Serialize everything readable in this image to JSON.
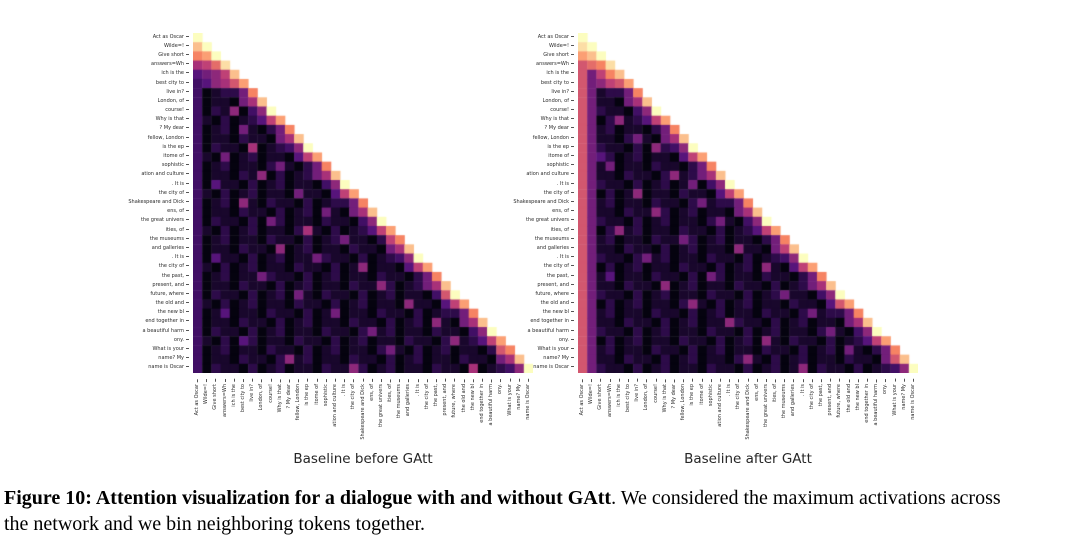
{
  "page": {
    "background": "#ffffff"
  },
  "caption": {
    "bold": "Figure 10: Attention visualization for a dialogue with and without GAtt",
    "rest": ". We considered the maximum activations across the network and we bin neighboring tokens together."
  },
  "chart_data": [
    {
      "type": "heatmap",
      "title": "Baseline before GAtt",
      "xlabel": "",
      "ylabel": "",
      "legend": "none",
      "grid": false,
      "mask": "upper_triangle_hidden",
      "x_categories_same_as_y": true,
      "value_encoding": "one hex digit per cell, 0-f scaled to 0-1 attention intensity",
      "colormap_stops": [
        {
          "t": 0.0,
          "hex": "#05030f"
        },
        {
          "t": 0.25,
          "hex": "#50127b"
        },
        {
          "t": 0.5,
          "hex": "#b63679"
        },
        {
          "t": 0.75,
          "hex": "#fb8861"
        },
        {
          "t": 1.0,
          "hex": "#fcfdbf"
        }
      ],
      "categories": [
        "Act as Oscar",
        "Wilde=!",
        "Give short",
        "answers=Wh",
        "ich is the",
        "best city to",
        "live in?",
        "London, of",
        "course!",
        "Why is that",
        "? My dear",
        "fellow, London",
        "is the ep",
        "itome of",
        "sophistic",
        "ation and culture",
        ". It is",
        "the city of",
        "Shakespeare and Dick",
        "ens, of",
        "the great univers",
        "ities, of",
        "the museums",
        "and galleries",
        ". It is",
        "the city of",
        "the past,",
        "present, and",
        "future, where",
        "the old and",
        "the new bl",
        "end together in",
        "a beautiful harm",
        "ony.",
        "What is your",
        "name? My",
        "name is Oscar"
      ],
      "rows_hex": [
        "f",
        "df",
        "bcf",
        "78ae",
        "4568d",
        "34679c",
        "301225b",
        "3011057d",
        "30211036f",
        "310201248c",
        "3012011025b",
        "30110211057d",
        "302110201236f",
        "3102012011048c",
        "30120110211025b",
        "301102110201257d",
        "3021102012011036f",
        "31020120110211048c",
        "301201102110201225b",
        "3011021102012011057d",
        "30211020120110211036f",
        "310201201102110201248c",
        "3012011021102012011025b",
        "30110211020120110211057d",
        "302110201201102110201236f",
        "3102012011021102012011048c",
        "30120110211020120110211025b",
        "301102110201201102110201257d",
        "3021102012011021102012011036f",
        "31020120110211020120110211048c",
        "301201102110201201102110201225b",
        "3011021102012011021102012011057d",
        "30211020120110211020120110211036f",
        "310201201102110201201102110201248c",
        "3012011021102012011021102012011025b",
        "30110211020120110211020120110211057d",
        "302110201201102110201201102110201236f"
      ],
      "speckles": [
        [
          8,
          4,
          "6"
        ],
        [
          10,
          5,
          "5"
        ],
        [
          12,
          6,
          "7"
        ],
        [
          13,
          3,
          "5"
        ],
        [
          14,
          9,
          "5"
        ],
        [
          15,
          7,
          "6"
        ],
        [
          16,
          2,
          "4"
        ],
        [
          17,
          11,
          "5"
        ],
        [
          18,
          5,
          "6"
        ],
        [
          19,
          14,
          "5"
        ],
        [
          20,
          8,
          "5"
        ],
        [
          21,
          12,
          "7"
        ],
        [
          22,
          16,
          "5"
        ],
        [
          23,
          9,
          "6"
        ],
        [
          24,
          13,
          "5"
        ],
        [
          25,
          18,
          "6"
        ],
        [
          26,
          7,
          "5"
        ],
        [
          27,
          20,
          "6"
        ],
        [
          28,
          11,
          "5"
        ],
        [
          29,
          23,
          "6"
        ],
        [
          30,
          15,
          "5"
        ],
        [
          31,
          26,
          "6"
        ],
        [
          32,
          19,
          "5"
        ],
        [
          33,
          28,
          "6"
        ],
        [
          34,
          21,
          "5"
        ],
        [
          35,
          10,
          "6"
        ],
        [
          36,
          30,
          "7"
        ],
        [
          30,
          3,
          "4"
        ],
        [
          33,
          5,
          "4"
        ],
        [
          24,
          2,
          "4"
        ],
        [
          36,
          17,
          "6"
        ],
        [
          34,
          33,
          "9"
        ],
        [
          28,
          27,
          "9"
        ],
        [
          22,
          21,
          "8"
        ]
      ]
    },
    {
      "type": "heatmap",
      "title": "Baseline after GAtt",
      "xlabel": "",
      "ylabel": "",
      "legend": "none",
      "grid": false,
      "mask": "upper_triangle_hidden",
      "x_categories_same_as_y": true,
      "value_encoding": "one hex digit per cell, 0-f scaled to 0-1 attention intensity; first columns stay bright (GAtt keeps attention on the initial instruction)",
      "colormap_stops": [
        {
          "t": 0.0,
          "hex": "#05030f"
        },
        {
          "t": 0.25,
          "hex": "#50127b"
        },
        {
          "t": 0.5,
          "hex": "#b63679"
        },
        {
          "t": 0.75,
          "hex": "#fb8861"
        },
        {
          "t": 1.0,
          "hex": "#fcfdbf"
        }
      ],
      "categories": [
        "Act as Oscar",
        "Wilde=!",
        "Give short",
        "answers=Wh",
        "ich is the",
        "best city to",
        "live in?",
        "London, of",
        "course!",
        "Why is that",
        "? My dear",
        "fellow, London",
        "is the ep",
        "itome of",
        "sophistic",
        "ation and culture",
        ". It is",
        "the city of",
        "Shakespeare and Dick",
        "ens, of",
        "the great univers",
        "ities, of",
        "the museums",
        "and galleries",
        ". It is",
        "the city of",
        "the past,",
        "present, and",
        "future, where",
        "the old and",
        "the new bl",
        "end together in",
        "a beautiful harm",
        "ony.",
        "What is your",
        "name? My",
        "name is Oscar"
      ],
      "rows_hex": [
        "f",
        "ef",
        "cdf",
        "9abe",
        "958bd",
        "95689c",
        "951225b",
        "9511057d",
        "95211036f",
        "950201248c",
        "9512011025b",
        "95110211057d",
        "952110201236f",
        "9502012011048c",
        "95120110211025b",
        "951102110201257d",
        "9521102012011036f",
        "95020120110211048c",
        "951201102110201225b",
        "9511021102012011057d",
        "95211020120110211036f",
        "950201201102110201248c",
        "9512011021102012011025b",
        "95110211020120110211057d",
        "952110201201102110201236f",
        "9502012011021102012011048c",
        "95120110211020120110211025b",
        "951102110201201102110201257d",
        "9521102012011021102012011036f",
        "95020120110211020120110211048c",
        "951201102110201201102110201225b",
        "9511021102012011021102012011057d",
        "95211020120110211020120110211036f",
        "950201201102110201201102110201248c",
        "9512011021102012011021102012011025b",
        "95110211020120110211020120110211057d",
        "952110201201102110201201102110201236f"
      ],
      "speckles": [
        [
          9,
          4,
          "6"
        ],
        [
          11,
          6,
          "5"
        ],
        [
          12,
          8,
          "6"
        ],
        [
          14,
          3,
          "5"
        ],
        [
          15,
          10,
          "6"
        ],
        [
          16,
          12,
          "5"
        ],
        [
          17,
          6,
          "6"
        ],
        [
          18,
          13,
          "5"
        ],
        [
          19,
          8,
          "6"
        ],
        [
          20,
          15,
          "5"
        ],
        [
          21,
          4,
          "6"
        ],
        [
          22,
          11,
          "5"
        ],
        [
          23,
          17,
          "6"
        ],
        [
          24,
          7,
          "5"
        ],
        [
          25,
          20,
          "6"
        ],
        [
          26,
          14,
          "5"
        ],
        [
          27,
          9,
          "6"
        ],
        [
          28,
          22,
          "5"
        ],
        [
          29,
          12,
          "6"
        ],
        [
          30,
          25,
          "5"
        ],
        [
          31,
          16,
          "6"
        ],
        [
          32,
          27,
          "5"
        ],
        [
          33,
          20,
          "6"
        ],
        [
          34,
          29,
          "5"
        ],
        [
          35,
          18,
          "6"
        ],
        [
          36,
          24,
          "6"
        ],
        [
          29,
          28,
          "9"
        ],
        [
          23,
          22,
          "8"
        ],
        [
          35,
          34,
          "9"
        ],
        [
          13,
          2,
          "4"
        ],
        [
          26,
          3,
          "4"
        ]
      ]
    }
  ]
}
